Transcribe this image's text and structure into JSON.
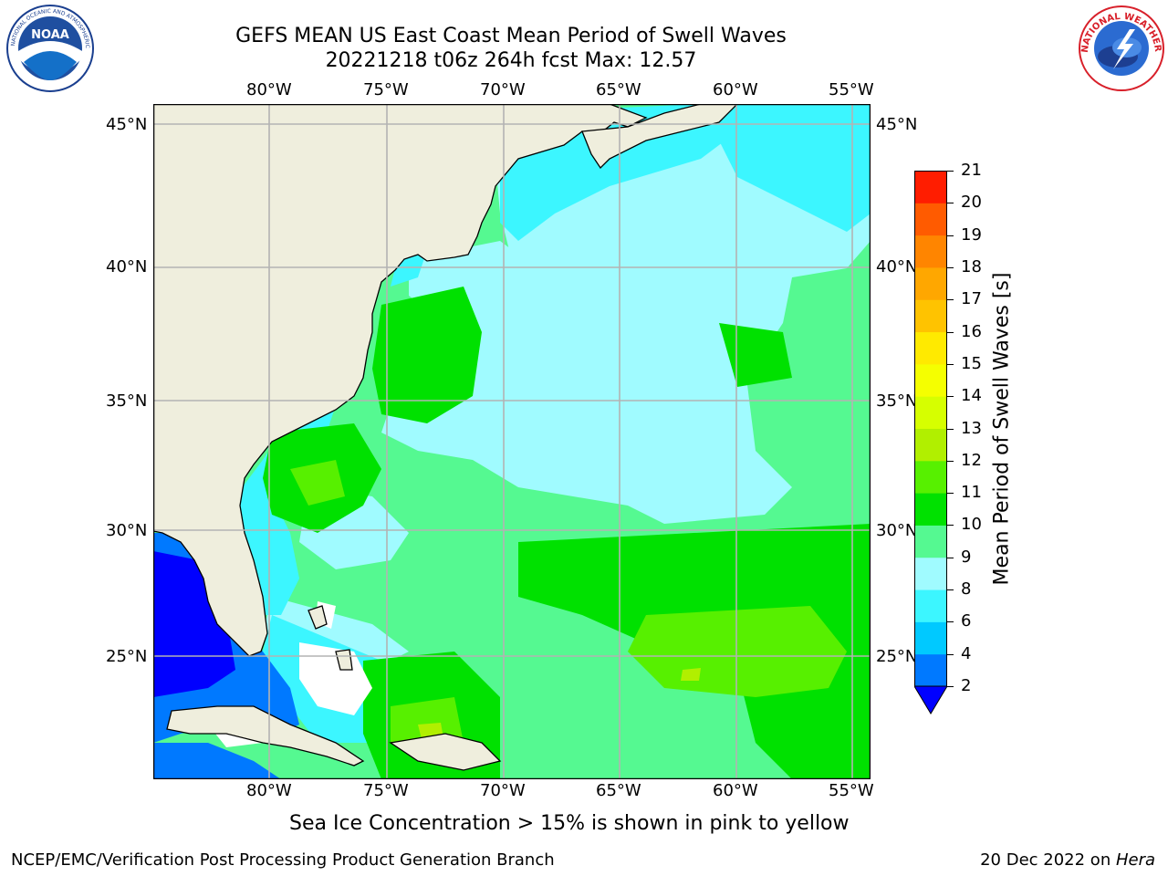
{
  "header": {
    "title_line1": "GEFS MEAN US East Coast Mean Period of Swell Waves",
    "title_line2": "20221218 t06z 264h fcst   Max: 12.57"
  },
  "logos": {
    "left": {
      "name": "NOAA",
      "ring_text": "NATIONAL OCEANIC AND ATMOSPHERIC ADMINISTRATION"
    },
    "right": {
      "name": "NATIONAL WEATHER SERVICE"
    }
  },
  "map": {
    "lon_labels": [
      "80°W",
      "75°W",
      "70°W",
      "65°W",
      "60°W",
      "55°W"
    ],
    "lat_labels": [
      "45°N",
      "40°N",
      "35°N",
      "30°N",
      "25°N"
    ],
    "land_color": "#efeedd",
    "grid_color": "#b3b3b3"
  },
  "colorbar": {
    "label": "Mean Period of Swell Waves [s]",
    "ticks": [
      "2",
      "4",
      "6",
      "8",
      "9",
      "10",
      "11",
      "12",
      "13",
      "14",
      "15",
      "16",
      "17",
      "18",
      "19",
      "20",
      "21"
    ],
    "colors": [
      "#0079ff",
      "#00c9ff",
      "#3cf6ff",
      "#a0fbff",
      "#55f991",
      "#00e100",
      "#57f000",
      "#b1ef00",
      "#d6ff00",
      "#f5ff00",
      "#ffea00",
      "#ffc300",
      "#ffa700",
      "#ff8500",
      "#ff5b00",
      "#ff1d00"
    ],
    "under_color": "#0000ff"
  },
  "caption": "Sea Ice Concentration > 15% is shown in pink to yellow",
  "footer": {
    "left": "NCEP/EMC/Verification Post Processing Product Generation Branch",
    "right_prefix": "20 Dec 2022 on ",
    "right_host": "Hera"
  }
}
